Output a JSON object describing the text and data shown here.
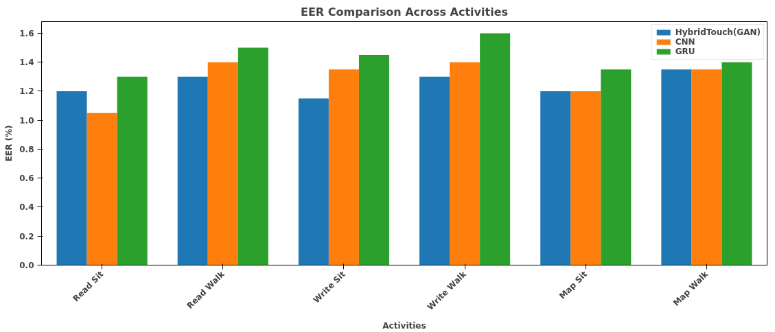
{
  "chart_data": {
    "type": "bar",
    "title": "EER Comparison Across Activities",
    "xlabel": "Activities",
    "ylabel": "EER (%)",
    "categories": [
      "Read Sit",
      "Read Walk",
      "Write Sit",
      "Write Walk",
      "Map Sit",
      "Map Walk"
    ],
    "series": [
      {
        "name": "HybridTouch(GAN)",
        "color": "#1f77b4",
        "values": [
          1.2,
          1.3,
          1.15,
          1.3,
          1.2,
          1.35
        ]
      },
      {
        "name": "CNN",
        "color": "#ff7f0e",
        "values": [
          1.05,
          1.4,
          1.35,
          1.4,
          1.2,
          1.35
        ]
      },
      {
        "name": "GRU",
        "color": "#2ca02c",
        "values": [
          1.3,
          1.5,
          1.45,
          1.6,
          1.35,
          1.4
        ]
      }
    ],
    "ylim": [
      0,
      1.68
    ],
    "yticks": [
      {
        "value": 0,
        "label": "0.0"
      },
      0.2,
      0.4,
      0.6,
      0.8,
      {
        "value": 1,
        "label": "1.0"
      },
      1.2,
      1.4,
      1.6
    ],
    "grid": false,
    "legend": "top right"
  }
}
